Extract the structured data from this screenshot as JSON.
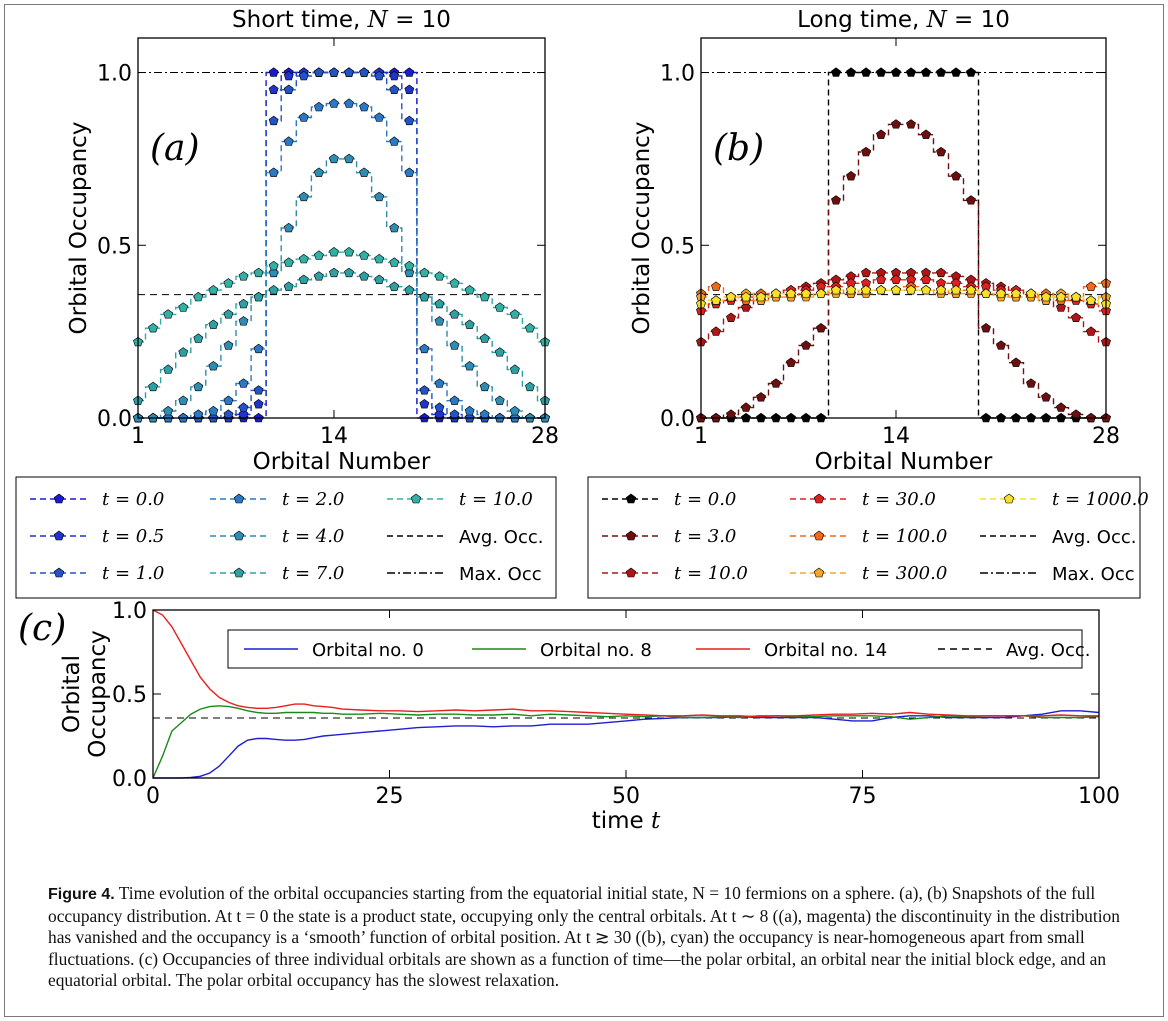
{
  "panel_labels": [
    "(a)",
    "(b)",
    "(c)"
  ],
  "chart_data": [
    {
      "type": "scatter",
      "panel": "(a)",
      "title": "Short time, N = 10",
      "xlabel": "Orbital Number",
      "ylabel": "Orbital Occupancy",
      "xlim": [
        1,
        28
      ],
      "ylim": [
        0,
        1.1
      ],
      "xticks": [
        "1",
        "14",
        "28"
      ],
      "yticks": [
        "0.0",
        "0.5",
        "1.0"
      ],
      "x": [
        1,
        2,
        3,
        4,
        5,
        6,
        7,
        8,
        9,
        10,
        11,
        12,
        13,
        14,
        15,
        16,
        17,
        18,
        19,
        20,
        21,
        22,
        23,
        24,
        25,
        26,
        27,
        28
      ],
      "series": [
        {
          "name": "t = 0.0",
          "color": "#1a1ad0",
          "values": [
            0,
            0,
            0,
            0,
            0,
            0,
            0,
            0,
            0,
            1,
            1,
            1,
            1,
            1,
            1,
            1,
            1,
            1,
            1,
            0,
            0,
            0,
            0,
            0,
            0,
            0,
            0,
            0
          ]
        },
        {
          "name": "t = 0.5",
          "color": "#1f34c8",
          "values": [
            0,
            0,
            0,
            0,
            0,
            0,
            0,
            0.01,
            0.04,
            0.95,
            0.99,
            1,
            1,
            1,
            1,
            1,
            1,
            0.99,
            0.95,
            0.04,
            0.01,
            0,
            0,
            0,
            0,
            0,
            0,
            0
          ]
        },
        {
          "name": "t = 1.0",
          "color": "#2453c8",
          "values": [
            0,
            0,
            0,
            0,
            0,
            0,
            0.01,
            0.03,
            0.08,
            0.86,
            0.95,
            0.99,
            1,
            1,
            1,
            1,
            0.99,
            0.95,
            0.86,
            0.08,
            0.03,
            0.01,
            0,
            0,
            0,
            0,
            0,
            0
          ]
        },
        {
          "name": "t = 2.0",
          "color": "#2b78c4",
          "values": [
            0,
            0,
            0,
            0,
            0.01,
            0.02,
            0.05,
            0.1,
            0.2,
            0.71,
            0.8,
            0.87,
            0.9,
            0.91,
            0.91,
            0.9,
            0.87,
            0.8,
            0.71,
            0.2,
            0.1,
            0.05,
            0.02,
            0.01,
            0,
            0,
            0,
            0
          ]
        },
        {
          "name": "t = 4.0",
          "color": "#2f8cb2",
          "values": [
            0,
            0,
            0.02,
            0.05,
            0.09,
            0.15,
            0.21,
            0.28,
            0.35,
            0.42,
            0.55,
            0.64,
            0.71,
            0.75,
            0.75,
            0.71,
            0.64,
            0.55,
            0.42,
            0.35,
            0.28,
            0.21,
            0.15,
            0.09,
            0.05,
            0.02,
            0,
            0
          ]
        },
        {
          "name": "t = 7.0",
          "color": "#2ea0a4",
          "values": [
            0.05,
            0.09,
            0.14,
            0.19,
            0.23,
            0.27,
            0.3,
            0.33,
            0.35,
            0.37,
            0.38,
            0.4,
            0.41,
            0.42,
            0.42,
            0.41,
            0.4,
            0.38,
            0.37,
            0.35,
            0.33,
            0.3,
            0.27,
            0.23,
            0.19,
            0.14,
            0.09,
            0.05
          ]
        },
        {
          "name": "t = 10.0",
          "color": "#33b0a5",
          "values": [
            0.22,
            0.26,
            0.3,
            0.32,
            0.35,
            0.37,
            0.39,
            0.41,
            0.42,
            0.44,
            0.45,
            0.46,
            0.47,
            0.48,
            0.48,
            0.47,
            0.46,
            0.45,
            0.44,
            0.42,
            0.41,
            0.39,
            0.37,
            0.35,
            0.32,
            0.3,
            0.26,
            0.22
          ]
        }
      ],
      "reference_lines": [
        {
          "name": "Avg. Occ.",
          "value": 0.357,
          "style": "dashed"
        },
        {
          "name": "Max. Occ",
          "value": 1.0,
          "style": "dashdot"
        }
      ],
      "legend": [
        {
          "label": "t = 0.0",
          "color": "#1a1ad0",
          "marker": true,
          "line": "dash"
        },
        {
          "label": "t = 0.5",
          "color": "#1f34c8",
          "marker": true,
          "line": "dash"
        },
        {
          "label": "t = 1.0",
          "color": "#2453c8",
          "marker": true,
          "line": "dash"
        },
        {
          "label": "t = 2.0",
          "color": "#2b78c4",
          "marker": true,
          "line": "dash"
        },
        {
          "label": "t = 4.0",
          "color": "#2f8cb2",
          "marker": true,
          "line": "dash"
        },
        {
          "label": "t = 7.0",
          "color": "#2ea0a4",
          "marker": true,
          "line": "dash"
        },
        {
          "label": "t = 10.0",
          "color": "#33b0a5",
          "marker": true,
          "line": "dash"
        },
        {
          "label": "Avg. Occ.",
          "color": "#000000",
          "marker": false,
          "line": "dash"
        },
        {
          "label": "Max. Occ",
          "color": "#000000",
          "marker": false,
          "line": "dashdot"
        }
      ]
    },
    {
      "type": "scatter",
      "panel": "(b)",
      "title": "Long time, N = 10",
      "xlabel": "Orbital Number",
      "ylabel": "Orbital Occupancy",
      "xlim": [
        1,
        28
      ],
      "ylim": [
        0,
        1.1
      ],
      "xticks": [
        "1",
        "14",
        "28"
      ],
      "yticks": [
        "0.0",
        "0.5",
        "1.0"
      ],
      "x": [
        1,
        2,
        3,
        4,
        5,
        6,
        7,
        8,
        9,
        10,
        11,
        12,
        13,
        14,
        15,
        16,
        17,
        18,
        19,
        20,
        21,
        22,
        23,
        24,
        25,
        26,
        27,
        28
      ],
      "series": [
        {
          "name": "t = 0.0",
          "color": "#000000",
          "values": [
            0,
            0,
            0,
            0,
            0,
            0,
            0,
            0,
            0,
            1,
            1,
            1,
            1,
            1,
            1,
            1,
            1,
            1,
            1,
            0,
            0,
            0,
            0,
            0,
            0,
            0,
            0,
            0
          ]
        },
        {
          "name": "t = 3.0",
          "color": "#6e0f0f",
          "values": [
            0,
            0,
            0.01,
            0.03,
            0.06,
            0.1,
            0.16,
            0.21,
            0.26,
            0.63,
            0.7,
            0.77,
            0.82,
            0.85,
            0.85,
            0.82,
            0.77,
            0.7,
            0.63,
            0.26,
            0.21,
            0.16,
            0.1,
            0.06,
            0.03,
            0.01,
            0,
            0
          ]
        },
        {
          "name": "t = 10.0",
          "color": "#b01515",
          "values": [
            0.22,
            0.25,
            0.29,
            0.32,
            0.34,
            0.36,
            0.37,
            0.38,
            0.39,
            0.4,
            0.41,
            0.42,
            0.42,
            0.42,
            0.42,
            0.42,
            0.42,
            0.41,
            0.4,
            0.39,
            0.38,
            0.37,
            0.36,
            0.34,
            0.32,
            0.29,
            0.25,
            0.22
          ]
        },
        {
          "name": "t = 30.0",
          "color": "#e02020",
          "values": [
            0.31,
            0.33,
            0.34,
            0.35,
            0.35,
            0.36,
            0.37,
            0.37,
            0.38,
            0.38,
            0.39,
            0.39,
            0.4,
            0.4,
            0.4,
            0.4,
            0.39,
            0.39,
            0.38,
            0.38,
            0.37,
            0.37,
            0.36,
            0.35,
            0.35,
            0.34,
            0.33,
            0.31
          ]
        },
        {
          "name": "t = 100.0",
          "color": "#f06a1a",
          "values": [
            0.36,
            0.38,
            0.35,
            0.34,
            0.36,
            0.35,
            0.35,
            0.36,
            0.36,
            0.37,
            0.36,
            0.37,
            0.37,
            0.37,
            0.38,
            0.37,
            0.37,
            0.36,
            0.37,
            0.36,
            0.36,
            0.35,
            0.35,
            0.36,
            0.34,
            0.35,
            0.38,
            0.39
          ]
        },
        {
          "name": "t = 300.0",
          "color": "#f7a52a",
          "values": [
            0.35,
            0.34,
            0.35,
            0.36,
            0.34,
            0.35,
            0.35,
            0.35,
            0.36,
            0.36,
            0.36,
            0.36,
            0.37,
            0.37,
            0.37,
            0.37,
            0.36,
            0.36,
            0.36,
            0.36,
            0.35,
            0.35,
            0.35,
            0.34,
            0.36,
            0.35,
            0.34,
            0.35
          ]
        },
        {
          "name": "t = 1000.0",
          "color": "#f7df2a",
          "values": [
            0.33,
            0.34,
            0.35,
            0.35,
            0.35,
            0.36,
            0.36,
            0.36,
            0.36,
            0.37,
            0.37,
            0.37,
            0.37,
            0.37,
            0.37,
            0.37,
            0.37,
            0.37,
            0.37,
            0.36,
            0.36,
            0.36,
            0.36,
            0.35,
            0.35,
            0.35,
            0.34,
            0.33
          ]
        }
      ],
      "reference_lines": [
        {
          "name": "Avg. Occ.",
          "value": 0.357,
          "style": "dashed"
        },
        {
          "name": "Max. Occ",
          "value": 1.0,
          "style": "dashdot"
        }
      ],
      "legend": [
        {
          "label": "t = 0.0",
          "color": "#000000",
          "marker": true,
          "line": "dash"
        },
        {
          "label": "t = 3.0",
          "color": "#6e0f0f",
          "marker": true,
          "line": "dash"
        },
        {
          "label": "t = 10.0",
          "color": "#b01515",
          "marker": true,
          "line": "dash"
        },
        {
          "label": "t = 30.0",
          "color": "#e02020",
          "marker": true,
          "line": "dash"
        },
        {
          "label": "t = 100.0",
          "color": "#f06a1a",
          "marker": true,
          "line": "dash"
        },
        {
          "label": "t = 300.0",
          "color": "#f7a52a",
          "marker": true,
          "line": "dash"
        },
        {
          "label": "t = 1000.0",
          "color": "#f7df2a",
          "marker": true,
          "line": "dash"
        },
        {
          "label": "Avg. Occ.",
          "color": "#000000",
          "marker": false,
          "line": "dash"
        },
        {
          "label": "Max. Occ",
          "color": "#000000",
          "marker": false,
          "line": "dashdot"
        }
      ]
    },
    {
      "type": "line",
      "panel": "(c)",
      "xlabel": "time t",
      "ylabel": "Orbital Occupancy",
      "xlim": [
        0,
        100
      ],
      "ylim": [
        0,
        1
      ],
      "xticks": [
        "0",
        "25",
        "50",
        "75",
        "100"
      ],
      "yticks": [
        "0.0",
        "0.5",
        "1.0"
      ],
      "x": [
        0,
        1,
        2,
        3,
        4,
        5,
        6,
        7,
        8,
        9,
        10,
        11,
        12,
        13,
        14,
        15,
        16,
        17,
        18,
        19,
        20,
        22,
        24,
        26,
        28,
        30,
        32,
        34,
        36,
        38,
        40,
        42,
        44,
        46,
        48,
        50,
        52,
        54,
        56,
        58,
        60,
        62,
        64,
        66,
        68,
        70,
        72,
        74,
        76,
        78,
        80,
        82,
        84,
        86,
        88,
        90,
        92,
        94,
        96,
        98,
        100
      ],
      "series": [
        {
          "name": "Orbital no. 0",
          "color": "#1f1fd0",
          "values": [
            0,
            0,
            0,
            0,
            0.003,
            0.01,
            0.03,
            0.07,
            0.13,
            0.19,
            0.225,
            0.235,
            0.235,
            0.23,
            0.225,
            0.225,
            0.23,
            0.24,
            0.25,
            0.255,
            0.26,
            0.27,
            0.28,
            0.29,
            0.3,
            0.305,
            0.31,
            0.31,
            0.305,
            0.31,
            0.31,
            0.32,
            0.32,
            0.32,
            0.33,
            0.34,
            0.35,
            0.355,
            0.36,
            0.36,
            0.36,
            0.365,
            0.36,
            0.36,
            0.36,
            0.36,
            0.35,
            0.34,
            0.34,
            0.36,
            0.37,
            0.37,
            0.36,
            0.36,
            0.36,
            0.36,
            0.37,
            0.38,
            0.4,
            0.4,
            0.39
          ]
        },
        {
          "name": "Orbital no. 8",
          "color": "#1a8a1a",
          "values": [
            0,
            0.13,
            0.28,
            0.33,
            0.38,
            0.41,
            0.425,
            0.43,
            0.425,
            0.415,
            0.4,
            0.39,
            0.385,
            0.385,
            0.39,
            0.39,
            0.39,
            0.39,
            0.385,
            0.385,
            0.38,
            0.38,
            0.385,
            0.38,
            0.375,
            0.38,
            0.38,
            0.375,
            0.375,
            0.38,
            0.37,
            0.38,
            0.375,
            0.37,
            0.365,
            0.37,
            0.365,
            0.37,
            0.36,
            0.36,
            0.365,
            0.36,
            0.37,
            0.37,
            0.365,
            0.365,
            0.37,
            0.37,
            0.37,
            0.365,
            0.35,
            0.36,
            0.37,
            0.365,
            0.37,
            0.37,
            0.37,
            0.36,
            0.36,
            0.36,
            0.365
          ]
        },
        {
          "name": "Orbital no. 14",
          "color": "#e81f1f",
          "values": [
            1,
            0.97,
            0.9,
            0.8,
            0.7,
            0.6,
            0.53,
            0.48,
            0.45,
            0.43,
            0.42,
            0.415,
            0.415,
            0.42,
            0.43,
            0.44,
            0.44,
            0.43,
            0.425,
            0.42,
            0.41,
            0.405,
            0.4,
            0.4,
            0.395,
            0.4,
            0.405,
            0.4,
            0.405,
            0.41,
            0.4,
            0.4,
            0.395,
            0.39,
            0.385,
            0.38,
            0.375,
            0.37,
            0.37,
            0.375,
            0.37,
            0.37,
            0.365,
            0.37,
            0.37,
            0.375,
            0.38,
            0.38,
            0.385,
            0.38,
            0.39,
            0.38,
            0.375,
            0.37,
            0.37,
            0.37,
            0.37,
            0.37,
            0.375,
            0.37,
            0.37
          ]
        }
      ],
      "reference_lines": [
        {
          "name": "Avg. Occ.",
          "value": 0.357,
          "style": "dashed"
        }
      ],
      "legend": [
        {
          "label": "Orbital no. 0",
          "color": "#1f1fd0",
          "line": "solid"
        },
        {
          "label": "Orbital no. 8",
          "color": "#1a8a1a",
          "line": "solid"
        },
        {
          "label": "Orbital no. 14",
          "color": "#e81f1f",
          "line": "solid"
        },
        {
          "label": "Avg. Occ.",
          "color": "#000000",
          "line": "dash"
        }
      ]
    }
  ],
  "caption": {
    "label": "Figure 4.",
    "text": "Time evolution of the orbital occupancies starting from the equatorial initial state, N = 10 fermions on a sphere. (a), (b) Snapshots of the full occupancy distribution. At t = 0 the state is a product state, occupying only the central orbitals. At t ∼ 8 ((a), magenta) the discontinuity in the distribution has vanished and the occupancy is a ‘smooth’ function of orbital position. At t ≳ 30 ((b), cyan) the occupancy is near-homogeneous apart from small fluctuations. (c) Occupancies of three individual orbitals are shown as a function of time—the polar orbital, an orbital near the initial block edge, and an equatorial orbital. The polar orbital occupancy has the slowest relaxation."
  }
}
